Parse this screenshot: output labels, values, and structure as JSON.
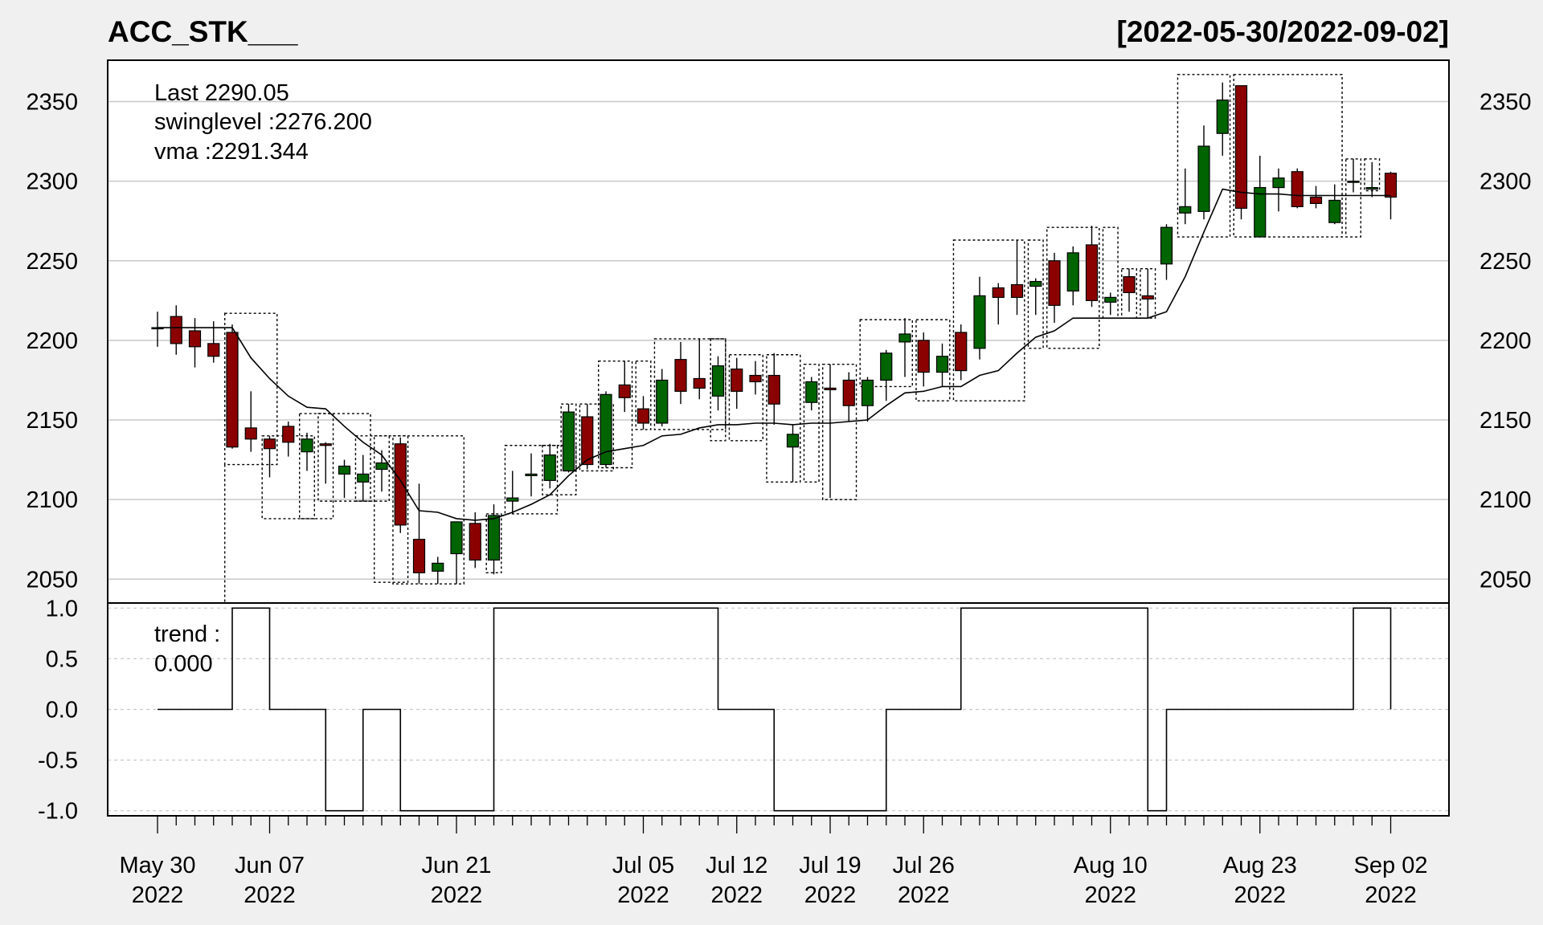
{
  "chart_data": {
    "type": "candlestick",
    "title": "ACC_STK___",
    "date_range": "[2022-05-30/2022-09-02]",
    "legend": {
      "last": "Last 2290.05",
      "swinglevel": "swinglevel :2276.200",
      "vma": "vma :2291.344",
      "trend_label": "trend :",
      "trend_value": "0.000"
    },
    "colors": {
      "up": "#006400",
      "down": "#8b0000",
      "last_text": "#8b0000"
    },
    "price_ylim": [
      2035,
      2376
    ],
    "price_yticks": [
      "2050",
      "2100",
      "2150",
      "2200",
      "2250",
      "2300",
      "2350"
    ],
    "trend_ylim": [
      -1.05,
      1.05
    ],
    "trend_yticks": [
      "-1.0",
      "-0.5",
      "0.0",
      "0.5",
      "1.0"
    ],
    "x_labels": [
      {
        "index": 0,
        "line1": "May 30",
        "line2": "2022"
      },
      {
        "index": 6,
        "line1": "Jun 07",
        "line2": "2022"
      },
      {
        "index": 16,
        "line1": "Jun 21",
        "line2": "2022"
      },
      {
        "index": 26,
        "line1": "Jul 05",
        "line2": "2022"
      },
      {
        "index": 31,
        "line1": "Jul 12",
        "line2": "2022"
      },
      {
        "index": 36,
        "line1": "Jul 19",
        "line2": "2022"
      },
      {
        "index": 41,
        "line1": "Jul 26",
        "line2": "2022"
      },
      {
        "index": 51,
        "line1": "Aug 10",
        "line2": "2022"
      },
      {
        "index": 59,
        "line1": "Aug 23",
        "line2": "2022"
      },
      {
        "index": 66,
        "line1": "Sep 02",
        "line2": "2022"
      }
    ],
    "candles": [
      [
        2208,
        2218,
        2196,
        2208
      ],
      [
        2215,
        2222,
        2191,
        2198
      ],
      [
        2206,
        2214,
        2183,
        2196
      ],
      [
        2198,
        2212,
        2186,
        2190
      ],
      [
        2205,
        2210,
        2132,
        2133
      ],
      [
        2145,
        2168,
        2130,
        2138
      ],
      [
        2138,
        2140,
        2114,
        2132
      ],
      [
        2146,
        2149,
        2127,
        2136
      ],
      [
        2130,
        2142,
        2118,
        2138
      ],
      [
        2135,
        2136,
        2110,
        2134
      ],
      [
        2116,
        2125,
        2101,
        2121
      ],
      [
        2111,
        2128,
        2099,
        2116
      ],
      [
        2119,
        2131,
        2105,
        2123
      ],
      [
        2135,
        2139,
        2079,
        2084
      ],
      [
        2075,
        2110,
        2047,
        2054
      ],
      [
        2055,
        2064,
        2047,
        2060
      ],
      [
        2066,
        2086,
        2047,
        2086
      ],
      [
        2085,
        2092,
        2057,
        2062
      ],
      [
        2062,
        2097,
        2053,
        2090
      ],
      [
        2099,
        2118,
        2091,
        2101
      ],
      [
        2115,
        2129,
        2102,
        2116
      ],
      [
        2112,
        2135,
        2107,
        2128
      ],
      [
        2118,
        2160,
        2117,
        2155
      ],
      [
        2152,
        2160,
        2119,
        2122
      ],
      [
        2122,
        2168,
        2120,
        2166
      ],
      [
        2172,
        2187,
        2155,
        2164
      ],
      [
        2157,
        2165,
        2144,
        2148
      ],
      [
        2148,
        2182,
        2146,
        2175
      ],
      [
        2188,
        2199,
        2160,
        2168
      ],
      [
        2176,
        2201,
        2163,
        2170
      ],
      [
        2165,
        2190,
        2156,
        2184
      ],
      [
        2182,
        2189,
        2157,
        2168
      ],
      [
        2178,
        2187,
        2166,
        2174
      ],
      [
        2178,
        2192,
        2147,
        2160
      ],
      [
        2133,
        2147,
        2111,
        2141
      ],
      [
        2161,
        2177,
        2156,
        2174
      ],
      [
        2170,
        2185,
        2101,
        2169
      ],
      [
        2175,
        2180,
        2149,
        2159
      ],
      [
        2159,
        2177,
        2149,
        2175
      ],
      [
        2175,
        2194,
        2162,
        2192
      ],
      [
        2199,
        2214,
        2177,
        2204
      ],
      [
        2200,
        2205,
        2171,
        2180
      ],
      [
        2180,
        2198,
        2171,
        2190
      ],
      [
        2205,
        2210,
        2175,
        2181
      ],
      [
        2195,
        2240,
        2188,
        2228
      ],
      [
        2233,
        2236,
        2210,
        2227
      ],
      [
        2235,
        2263,
        2216,
        2227
      ],
      [
        2234,
        2239,
        2216,
        2237
      ],
      [
        2250,
        2255,
        2211,
        2222
      ],
      [
        2231,
        2259,
        2222,
        2255
      ],
      [
        2260,
        2272,
        2221,
        2225
      ],
      [
        2224,
        2230,
        2216,
        2227
      ],
      [
        2240,
        2245,
        2218,
        2230
      ],
      [
        2228,
        2245,
        2214,
        2226
      ],
      [
        2248,
        2273,
        2238,
        2271
      ],
      [
        2280,
        2308,
        2273,
        2284
      ],
      [
        2281,
        2335,
        2276,
        2322
      ],
      [
        2330,
        2362,
        2316,
        2351
      ],
      [
        2360,
        2360,
        2276,
        2283
      ],
      [
        2265,
        2316,
        2265,
        2296
      ],
      [
        2296,
        2308,
        2281,
        2302
      ],
      [
        2306,
        2308,
        2283,
        2284
      ],
      [
        2290,
        2297,
        2283,
        2286
      ],
      [
        2274,
        2298,
        2273,
        2288
      ],
      [
        2300,
        2314,
        2293,
        2300
      ],
      [
        2295,
        2312,
        2290,
        2296
      ],
      [
        2305,
        2306,
        2276,
        2290
      ]
    ],
    "vma": [
      2208,
      2208,
      2208,
      2208,
      2208,
      2189,
      2176,
      2165,
      2158,
      2157,
      2146,
      2136,
      2128,
      2112,
      2093,
      2092,
      2088,
      2087,
      2088,
      2092,
      2097,
      2103,
      2115,
      2125,
      2130,
      2132,
      2134,
      2140,
      2141,
      2145,
      2147,
      2147,
      2148,
      2148,
      2147,
      2148,
      2148,
      2149,
      2150,
      2159,
      2167,
      2168,
      2171,
      2171,
      2178,
      2181,
      2192,
      2202,
      2206,
      2214,
      2214,
      2214,
      2214,
      2214,
      2218,
      2240,
      2268,
      2295,
      2293,
      2292,
      2292,
      2291,
      2291,
      2291,
      2291,
      2291,
      2291
    ],
    "swing_boxes": [
      [
        3.6,
        6.4,
        2122,
        2217
      ],
      [
        5.6,
        8.4,
        2088,
        2140
      ],
      [
        7.6,
        9.4,
        2088,
        2154
      ],
      [
        8.6,
        11.4,
        2099,
        2154
      ],
      [
        10.6,
        12.4,
        2099,
        2140
      ],
      [
        11.6,
        13.4,
        2048,
        2140
      ],
      [
        12.6,
        16.4,
        2047,
        2140
      ],
      [
        17.6,
        18.4,
        2054,
        2091
      ],
      [
        18.6,
        21.4,
        2091,
        2134
      ],
      [
        20.6,
        22.4,
        2103,
        2134
      ],
      [
        21.6,
        22.4,
        2118,
        2160
      ],
      [
        22.6,
        24.4,
        2118,
        2160
      ],
      [
        23.6,
        25.4,
        2120,
        2187
      ],
      [
        25.6,
        26.4,
        2144,
        2187
      ],
      [
        26.6,
        30.4,
        2144,
        2201
      ],
      [
        29.6,
        30.4,
        2137,
        2201
      ],
      [
        30.6,
        32.4,
        2137,
        2191
      ],
      [
        32.6,
        34.4,
        2111,
        2191
      ],
      [
        34.6,
        35.4,
        2111,
        2185
      ],
      [
        35.6,
        37.4,
        2100,
        2185
      ],
      [
        37.6,
        40.4,
        2171,
        2213
      ],
      [
        40.6,
        42.4,
        2162,
        2213
      ],
      [
        42.6,
        46.4,
        2162,
        2263
      ],
      [
        46.6,
        47.4,
        2195,
        2263
      ],
      [
        47.6,
        50.4,
        2195,
        2271
      ],
      [
        50.6,
        51.4,
        2214,
        2271
      ],
      [
        51.6,
        52.4,
        2214,
        2245
      ],
      [
        52.6,
        53.4,
        2214,
        2245
      ],
      [
        54.6,
        57.4,
        2265,
        2367
      ],
      [
        57.6,
        63.4,
        2265,
        2367
      ],
      [
        63.6,
        64.4,
        2265,
        2314
      ],
      [
        64.6,
        65.4,
        2294,
        2314
      ]
    ],
    "extra_lines": [
      [
        [
          3.6,
          2122
        ],
        [
          3.6,
          2035
        ]
      ]
    ],
    "trend": [
      0,
      0,
      0,
      0,
      1,
      1,
      0,
      0,
      0,
      -1,
      -1,
      0,
      0,
      -1,
      -1,
      -1,
      -1,
      -1,
      1,
      1,
      1,
      1,
      1,
      1,
      1,
      1,
      1,
      1,
      1,
      1,
      0,
      0,
      0,
      -1,
      -1,
      -1,
      -1,
      -1,
      -1,
      0,
      0,
      0,
      0,
      1,
      1,
      1,
      1,
      1,
      1,
      1,
      1,
      1,
      1,
      -1,
      0,
      0,
      0,
      0,
      0,
      0,
      0,
      0,
      0,
      0,
      1,
      1,
      0
    ]
  }
}
